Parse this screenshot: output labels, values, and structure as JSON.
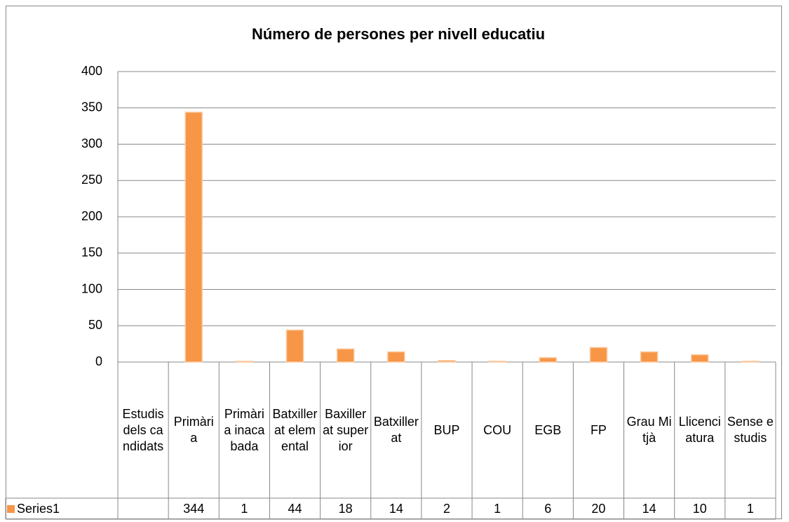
{
  "chart_data": {
    "type": "bar",
    "title": "Número de persones per nivell educatiu",
    "categories": [
      "Estudis dels candidats",
      "Primària",
      "Primària inacabada",
      "Batxillerat elemental",
      "Baxillerat superior",
      "Batxillerat",
      "BUP",
      "COU",
      "EGB",
      "FP",
      "Grau Mitjà",
      "Llicenciatura",
      "Sense estudis"
    ],
    "series": [
      {
        "name": "Series1",
        "color": "#f79646",
        "values": [
          null,
          344,
          1,
          44,
          18,
          14,
          2,
          1,
          6,
          20,
          14,
          10,
          1
        ]
      }
    ],
    "ylim": [
      0,
      400
    ],
    "yticks": [
      0,
      50,
      100,
      150,
      200,
      250,
      300,
      350,
      400
    ],
    "grid": true
  }
}
